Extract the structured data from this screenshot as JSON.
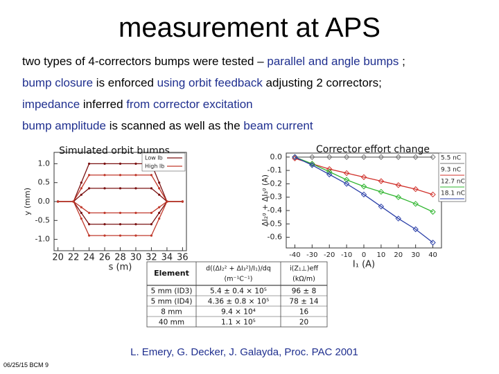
{
  "title": "measurement at APS",
  "bullets": [
    {
      "segments": [
        {
          "text": "two types of 4-correctors bumps were tested – ",
          "color": "#000000"
        },
        {
          "text": "parallel and angle bumps",
          "color": "#1f2f8f"
        },
        {
          "text": " ;",
          "color": "#000000"
        }
      ]
    },
    {
      "segments": [
        {
          "text": "bump closure",
          "color": "#1f2f8f"
        },
        {
          "text": " is enforced ",
          "color": "#000000"
        },
        {
          "text": "using orbit feedback",
          "color": "#1f2f8f"
        },
        {
          "text": " adjusting 2 correctors;",
          "color": "#000000"
        }
      ]
    },
    {
      "segments": [
        {
          "text": "impedance",
          "color": "#1f2f8f"
        },
        {
          "text": " inferred ",
          "color": "#000000"
        },
        {
          "text": "from corrector excitation",
          "color": "#1f2f8f"
        }
      ]
    },
    {
      "segments": [
        {
          "text": "bump amplitude",
          "color": "#1f2f8f"
        },
        {
          "text": " is scanned as well as the ",
          "color": "#000000"
        },
        {
          "text": "beam current",
          "color": "#1f2f8f"
        }
      ]
    }
  ],
  "figures": [
    {
      "type": "line",
      "title": "Simulated orbit bumps",
      "x_label": "s (m)",
      "y_label": "y (mm)",
      "x": [
        20,
        22,
        23,
        24,
        26,
        28,
        30,
        32,
        33,
        34,
        36
      ],
      "xlim": [
        19.5,
        36.5
      ],
      "ylim": [
        -1.3,
        1.3
      ],
      "xticks": [
        20,
        22,
        24,
        26,
        28,
        30,
        32,
        34,
        36
      ],
      "yticks": [
        {
          "value": 1,
          "label": "1.0"
        },
        0.5,
        {
          "value": 0,
          "label": "0.0"
        },
        -0.5,
        {
          "value": -1,
          "label": "-1.0"
        }
      ],
      "legend": [
        {
          "label": "Low Ib",
          "color": "#7a1010"
        },
        {
          "label": "High Ib",
          "color": "#c0392b"
        }
      ],
      "series": [
        {
          "color": "#7a1010",
          "values": [
            0,
            0,
            0.5,
            1.0,
            1.0,
            1.0,
            1.0,
            1.0,
            0.5,
            0,
            0
          ]
        },
        {
          "color": "#c0392b",
          "values": [
            0,
            0,
            0.35,
            0.7,
            0.7,
            0.7,
            0.7,
            0.7,
            0.35,
            0,
            0
          ]
        },
        {
          "color": "#7a1010",
          "values": [
            0,
            0,
            0.18,
            0.35,
            0.35,
            0.35,
            0.35,
            0.35,
            0.18,
            0,
            0
          ]
        },
        {
          "color": "#c0392b",
          "values": [
            0,
            0,
            -0.15,
            -0.3,
            -0.3,
            -0.3,
            -0.3,
            -0.3,
            -0.15,
            0,
            0
          ]
        },
        {
          "color": "#7a1010",
          "values": [
            0,
            0,
            -0.3,
            -0.6,
            -0.6,
            -0.6,
            -0.6,
            -0.6,
            -0.3,
            0,
            0
          ]
        },
        {
          "color": "#c0392b",
          "values": [
            0,
            0,
            -0.45,
            -0.9,
            -0.9,
            -0.9,
            -0.9,
            -0.9,
            -0.45,
            0,
            0
          ]
        }
      ]
    },
    {
      "type": "line",
      "title": "Corrector effort change",
      "x_label": "I₁ (A)",
      "y_label": "ΔI₂ᵍ + ΔI₃ᵍ (A)",
      "marker": "diamond",
      "x": [
        -40,
        -30,
        -20,
        -10,
        0,
        10,
        20,
        30,
        40
      ],
      "xlim": [
        -45,
        45
      ],
      "ylim": [
        -0.68,
        0.03
      ],
      "xticks": [
        -40,
        -30,
        -20,
        -10,
        0,
        10,
        20,
        30,
        40
      ],
      "yticks": [
        {
          "value": 0,
          "label": "0.0"
        },
        -0.1,
        -0.2,
        -0.3,
        -0.4,
        -0.5,
        -0.6
      ],
      "series": [
        {
          "name": "5.5 nC",
          "color": "#777777",
          "values": [
            0,
            0,
            0,
            0,
            0,
            0,
            0,
            0,
            0
          ]
        },
        {
          "name": "9.3 nC",
          "color": "#d0302a",
          "values": [
            -0.01,
            -0.05,
            -0.09,
            -0.12,
            -0.15,
            -0.18,
            -0.21,
            -0.24,
            -0.28
          ]
        },
        {
          "name": "12.7 nC",
          "color": "#2fb52f",
          "values": [
            0,
            -0.05,
            -0.11,
            -0.17,
            -0.22,
            -0.26,
            -0.3,
            -0.35,
            -0.41
          ]
        },
        {
          "name": "18.1 nC",
          "color": "#2a3fa8",
          "values": [
            0,
            -0.06,
            -0.13,
            -0.2,
            -0.28,
            -0.37,
            -0.46,
            -0.54,
            -0.64
          ]
        }
      ]
    }
  ],
  "table": {
    "header": [
      [
        "Element"
      ],
      [
        "d((ΔI₂² + ΔI₃²)/I₁)/dq",
        "(m⁻¹C⁻¹)"
      ],
      [
        "i(Z₁⊥)eff",
        "(kΩ/m)"
      ]
    ],
    "rows": [
      [
        "5 mm (ID3)",
        "5.4 ± 0.4 × 10⁵",
        "96 ± 8"
      ],
      [
        "5 mm (ID4)",
        "4.36 ± 0.8 × 10⁵",
        "78 ± 14"
      ],
      [
        "8 mm",
        "9.4 × 10⁴",
        "16"
      ],
      [
        "40 mm",
        "1.1 × 10⁵",
        "20"
      ]
    ]
  },
  "citation": "L. Emery, G. Decker, J. Galayda, Proc. PAC 2001",
  "footer": "06/25/15 BCM 9"
}
